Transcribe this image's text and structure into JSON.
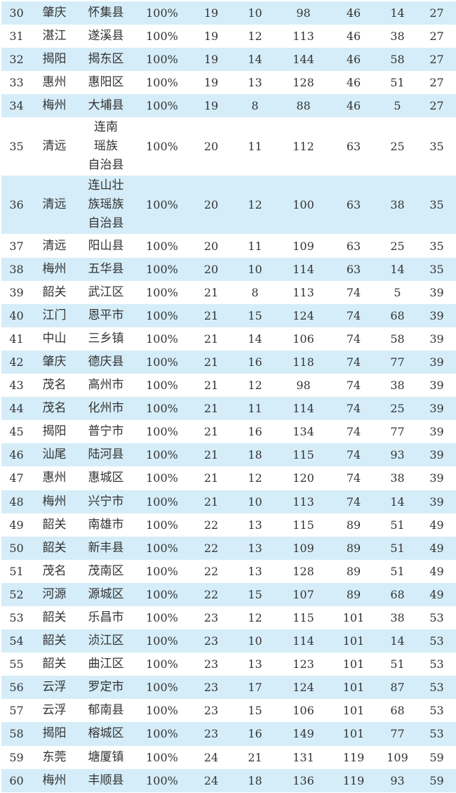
{
  "colors": {
    "band": "#d5edf8",
    "text": "#333333"
  },
  "rows": [
    [
      "30",
      "肇庆",
      "怀集县",
      "100%",
      "19",
      "10",
      "98",
      "46",
      "14",
      "27"
    ],
    [
      "31",
      "湛江",
      "遂溪县",
      "100%",
      "19",
      "12",
      "113",
      "46",
      "38",
      "27"
    ],
    [
      "32",
      "揭阳",
      "揭东区",
      "100%",
      "19",
      "14",
      "144",
      "46",
      "58",
      "27"
    ],
    [
      "33",
      "惠州",
      "惠阳区",
      "100%",
      "19",
      "13",
      "128",
      "46",
      "51",
      "27"
    ],
    [
      "34",
      "梅州",
      "大埔县",
      "100%",
      "19",
      "8",
      "88",
      "46",
      "5",
      "27"
    ],
    [
      "35",
      "清远",
      "连南\n瑶族\n自治县",
      "100%",
      "20",
      "11",
      "112",
      "63",
      "25",
      "35"
    ],
    [
      "36",
      "清远",
      "连山壮\n族瑶族\n自治县",
      "100%",
      "20",
      "12",
      "100",
      "63",
      "38",
      "35"
    ],
    [
      "37",
      "清远",
      "阳山县",
      "100%",
      "20",
      "11",
      "109",
      "63",
      "25",
      "35"
    ],
    [
      "38",
      "梅州",
      "五华县",
      "100%",
      "20",
      "10",
      "114",
      "63",
      "14",
      "35"
    ],
    [
      "39",
      "韶关",
      "武江区",
      "100%",
      "21",
      "8",
      "113",
      "74",
      "5",
      "39"
    ],
    [
      "40",
      "江门",
      "恩平市",
      "100%",
      "21",
      "15",
      "124",
      "74",
      "68",
      "39"
    ],
    [
      "41",
      "中山",
      "三乡镇",
      "100%",
      "21",
      "14",
      "106",
      "74",
      "58",
      "39"
    ],
    [
      "42",
      "肇庆",
      "德庆县",
      "100%",
      "21",
      "16",
      "118",
      "74",
      "77",
      "39"
    ],
    [
      "43",
      "茂名",
      "高州市",
      "100%",
      "21",
      "12",
      "98",
      "74",
      "38",
      "39"
    ],
    [
      "44",
      "茂名",
      "化州市",
      "100%",
      "21",
      "11",
      "114",
      "74",
      "25",
      "39"
    ],
    [
      "45",
      "揭阳",
      "普宁市",
      "100%",
      "21",
      "16",
      "134",
      "74",
      "77",
      "39"
    ],
    [
      "46",
      "汕尾",
      "陆河县",
      "100%",
      "21",
      "18",
      "115",
      "74",
      "93",
      "39"
    ],
    [
      "47",
      "惠州",
      "惠城区",
      "100%",
      "21",
      "12",
      "120",
      "74",
      "38",
      "39"
    ],
    [
      "48",
      "梅州",
      "兴宁市",
      "100%",
      "21",
      "10",
      "113",
      "74",
      "14",
      "39"
    ],
    [
      "49",
      "韶关",
      "南雄市",
      "100%",
      "22",
      "13",
      "115",
      "89",
      "51",
      "49"
    ],
    [
      "50",
      "韶关",
      "新丰县",
      "100%",
      "22",
      "13",
      "109",
      "89",
      "51",
      "49"
    ],
    [
      "51",
      "茂名",
      "茂南区",
      "100%",
      "22",
      "13",
      "128",
      "89",
      "51",
      "49"
    ],
    [
      "52",
      "河源",
      "源城区",
      "100%",
      "22",
      "15",
      "107",
      "89",
      "68",
      "49"
    ],
    [
      "53",
      "韶关",
      "乐昌市",
      "100%",
      "23",
      "12",
      "115",
      "101",
      "38",
      "53"
    ],
    [
      "54",
      "韶关",
      "浈江区",
      "100%",
      "23",
      "10",
      "114",
      "101",
      "14",
      "53"
    ],
    [
      "55",
      "韶关",
      "曲江区",
      "100%",
      "23",
      "13",
      "123",
      "101",
      "51",
      "53"
    ],
    [
      "56",
      "云浮",
      "罗定市",
      "100%",
      "23",
      "17",
      "124",
      "101",
      "87",
      "53"
    ],
    [
      "57",
      "云浮",
      "郁南县",
      "100%",
      "23",
      "15",
      "106",
      "101",
      "68",
      "53"
    ],
    [
      "58",
      "揭阳",
      "榕城区",
      "100%",
      "23",
      "16",
      "149",
      "101",
      "77",
      "53"
    ],
    [
      "59",
      "东莞",
      "塘厦镇",
      "100%",
      "24",
      "21",
      "131",
      "119",
      "109",
      "59"
    ],
    [
      "60",
      "梅州",
      "丰顺县",
      "100%",
      "24",
      "18",
      "136",
      "119",
      "93",
      "59"
    ]
  ]
}
